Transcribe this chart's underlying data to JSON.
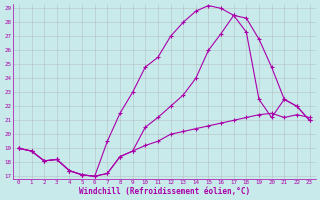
{
  "xlabel": "Windchill (Refroidissement éolien,°C)",
  "bg_color": "#c8eaea",
  "line_color": "#aa00aa",
  "grid_color": "#aaaaaa",
  "xmin": 0,
  "xmax": 23,
  "ymin": 17,
  "ymax": 29,
  "line1_x": [
    0,
    1,
    2,
    3,
    4,
    5,
    6,
    7,
    8,
    9,
    10,
    11,
    12,
    13,
    14,
    15,
    16,
    17,
    18,
    19,
    20,
    21,
    22,
    23
  ],
  "line1_y": [
    19.0,
    18.8,
    18.1,
    18.2,
    17.4,
    17.1,
    17.0,
    19.5,
    21.5,
    23.0,
    24.8,
    25.5,
    27.0,
    28.0,
    28.8,
    29.2,
    29.0,
    28.5,
    27.3,
    22.5,
    21.2,
    22.5,
    22.0,
    21.0
  ],
  "line2_x": [
    0,
    1,
    2,
    3,
    4,
    5,
    6,
    7,
    8,
    9,
    10,
    11,
    12,
    13,
    14,
    15,
    16,
    17,
    18,
    19,
    20,
    21,
    22,
    23
  ],
  "line2_y": [
    19.0,
    18.8,
    18.1,
    18.2,
    17.4,
    17.1,
    17.0,
    17.2,
    18.4,
    18.8,
    20.5,
    21.2,
    22.0,
    22.8,
    24.0,
    26.0,
    27.2,
    28.5,
    28.3,
    26.8,
    24.8,
    22.5,
    22.0,
    21.0
  ],
  "line3_x": [
    0,
    1,
    2,
    3,
    4,
    5,
    6,
    7,
    8,
    9,
    10,
    11,
    12,
    13,
    14,
    15,
    16,
    17,
    18,
    19,
    20,
    21,
    22,
    23
  ],
  "line3_y": [
    19.0,
    18.8,
    18.1,
    18.2,
    17.4,
    17.1,
    17.0,
    17.2,
    18.4,
    18.8,
    19.2,
    19.5,
    20.0,
    20.2,
    20.4,
    20.6,
    20.8,
    21.0,
    21.2,
    21.4,
    21.5,
    21.2,
    21.4,
    21.2
  ],
  "xticks": [
    0,
    1,
    2,
    3,
    4,
    5,
    6,
    7,
    8,
    9,
    10,
    11,
    12,
    13,
    14,
    15,
    16,
    17,
    18,
    19,
    20,
    21,
    22,
    23
  ],
  "yticks": [
    17,
    18,
    19,
    20,
    21,
    22,
    23,
    24,
    25,
    26,
    27,
    28,
    29
  ]
}
